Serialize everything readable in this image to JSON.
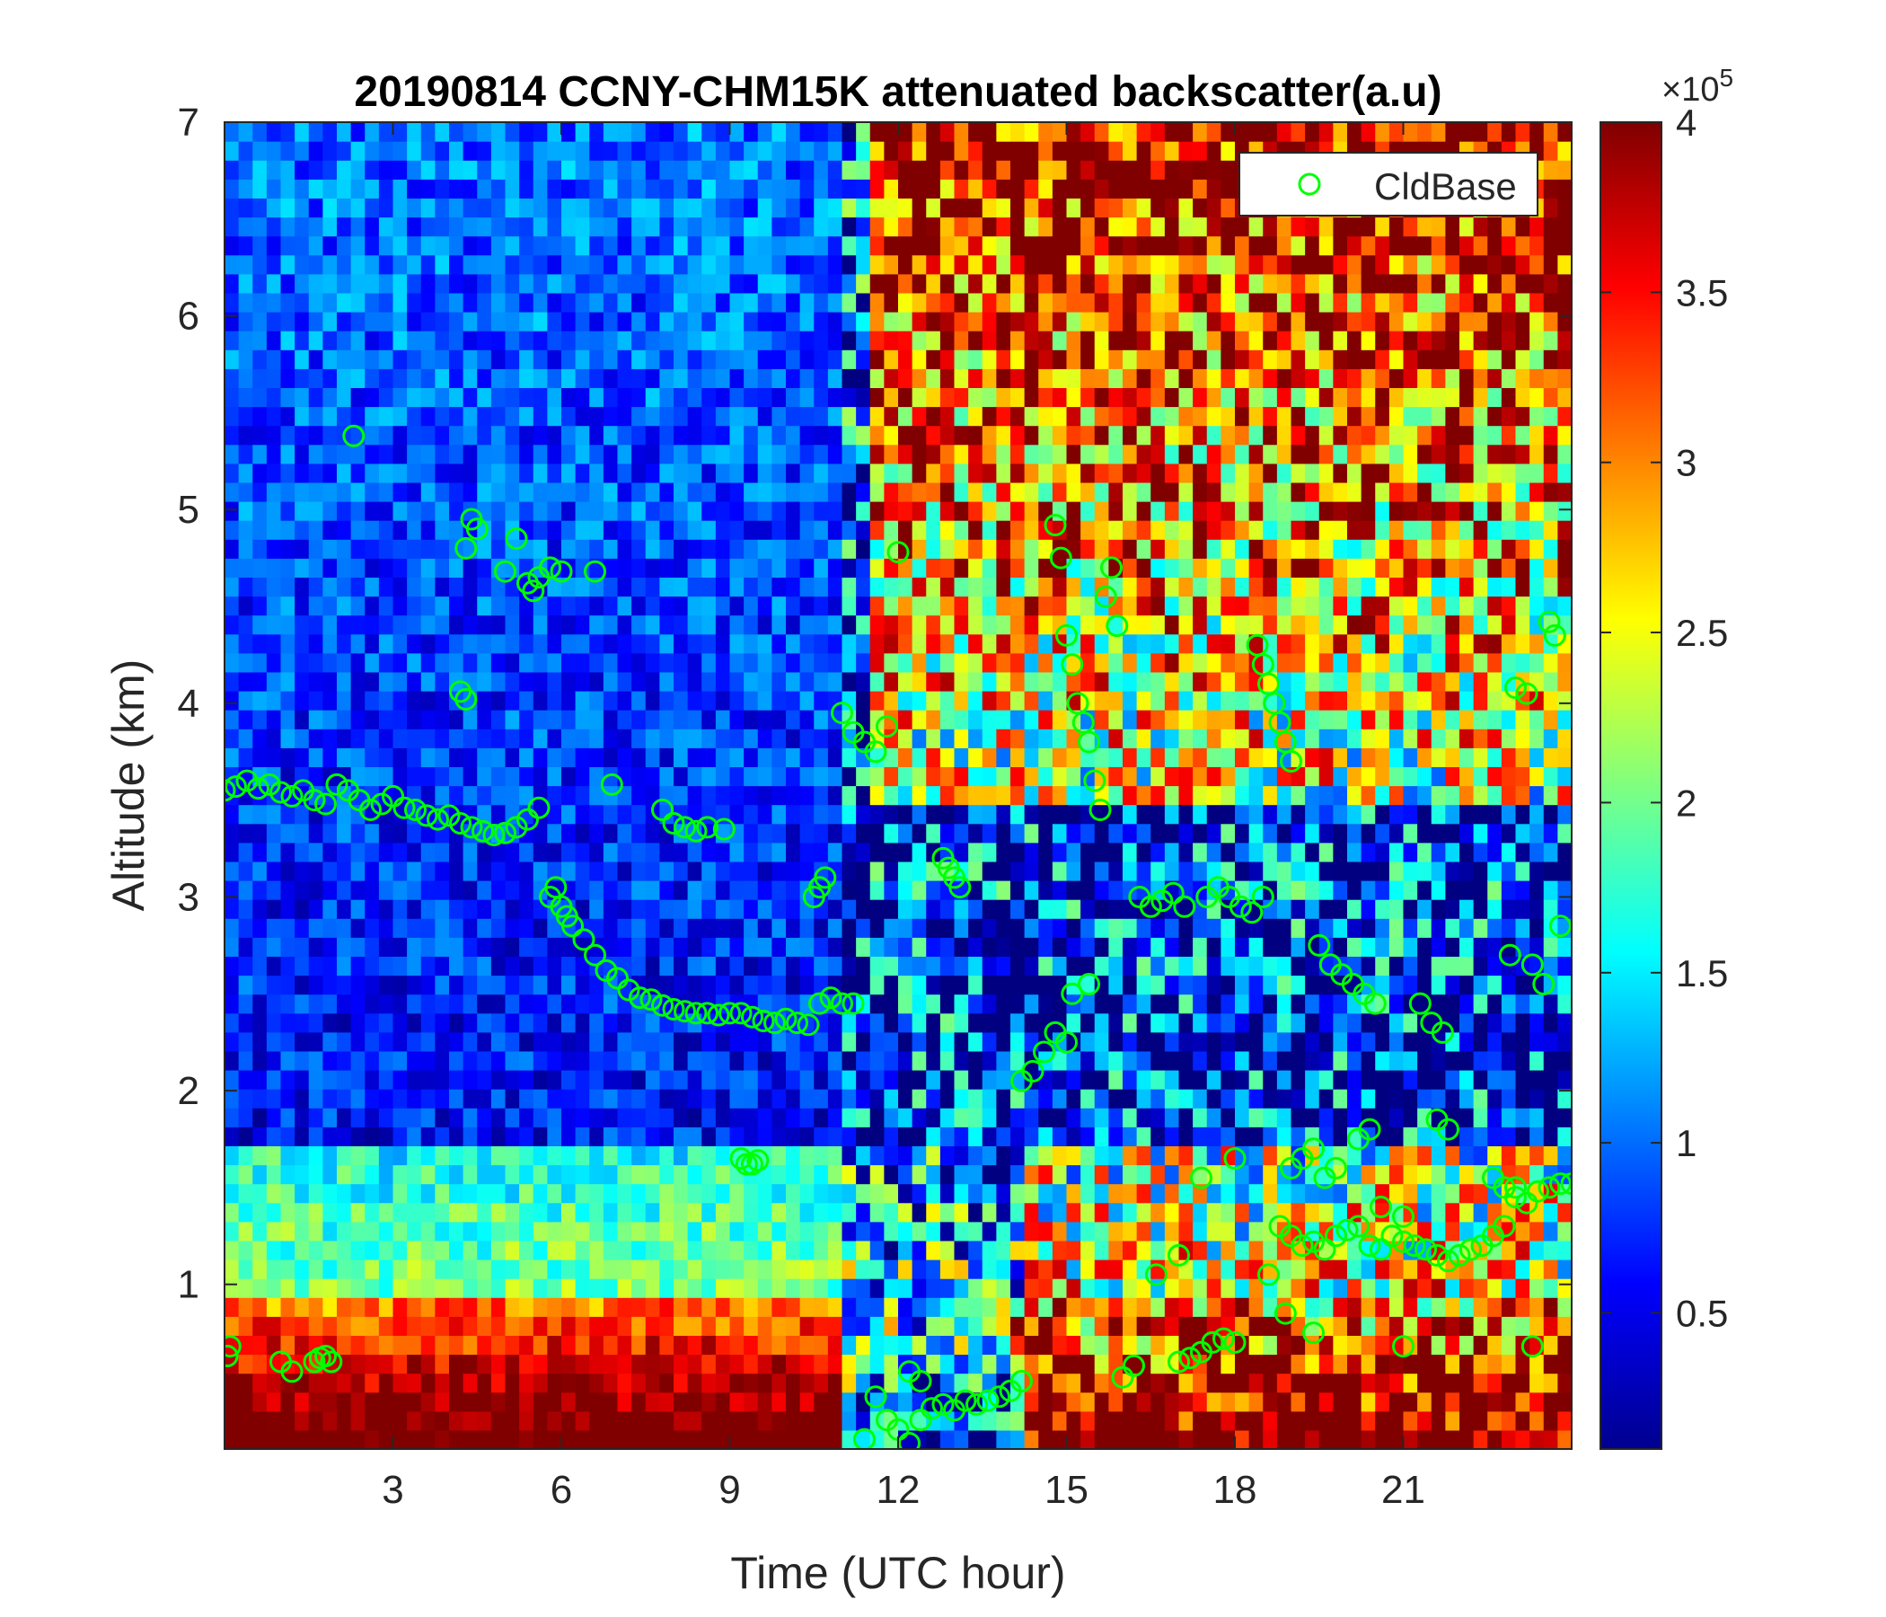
{
  "chart_data": {
    "type": "heatmap",
    "title": "20190814 CCNY-CHM15K attenuated backscatter(a.u)",
    "xlabel": "Time (UTC hour)",
    "ylabel": "Altitude (km)",
    "xlim": [
      0,
      24
    ],
    "ylim": [
      0.15,
      7
    ],
    "xticks": [
      3,
      6,
      9,
      12,
      15,
      18,
      21
    ],
    "yticks": [
      1,
      2,
      3,
      4,
      5,
      6,
      7
    ],
    "colorbar": {
      "colormap": "jet",
      "clim": [
        0.1,
        4
      ],
      "ticks": [
        0.5,
        1,
        1.5,
        2,
        2.5,
        3,
        3.5,
        4
      ],
      "tick_labels": [
        "0.5",
        "1",
        "1.5",
        "2",
        "2.5",
        "3",
        "3.5",
        "4"
      ],
      "exponent_label_prefix": "×10",
      "exponent": "5"
    },
    "legend": {
      "location": "top-right",
      "entries": [
        "CldBase"
      ]
    },
    "series": [
      {
        "name": "CldBase",
        "marker": "circle",
        "color": "#00ff00",
        "x": [
          0.0,
          0.2,
          0.4,
          0.6,
          0.8,
          1.0,
          1.2,
          1.4,
          1.6,
          1.8,
          2.0,
          2.2,
          2.4,
          2.6,
          2.8,
          3.0,
          3.2,
          3.4,
          3.6,
          3.8,
          4.0,
          4.2,
          4.4,
          4.6,
          4.8,
          5.0,
          5.2,
          5.4,
          5.6,
          5.8,
          5.9,
          6.0,
          6.1,
          6.2,
          6.4,
          6.6,
          6.8,
          7.0,
          7.2,
          7.4,
          7.6,
          7.8,
          8.0,
          8.2,
          8.4,
          8.6,
          8.8,
          9.0,
          9.2,
          9.4,
          9.6,
          9.8,
          10.0,
          10.2,
          10.4,
          10.6,
          10.8,
          11.0,
          11.2,
          0.05,
          0.1,
          1.0,
          1.2,
          1.6,
          1.7,
          1.8,
          1.9,
          11.4,
          11.6,
          11.8,
          12.0,
          12.2,
          12.4,
          12.6,
          12.8,
          13.0,
          13.2,
          13.4,
          13.6,
          13.8,
          14.0,
          14.2,
          14.2,
          14.4,
          14.6,
          14.8,
          15.0,
          4.3,
          4.4,
          4.5,
          5.0,
          5.2,
          5.4,
          5.5,
          5.6,
          5.8,
          6.0,
          6.6,
          4.2,
          4.3,
          2.3,
          6.9,
          7.8,
          8.0,
          8.2,
          8.4,
          8.6,
          8.9,
          10.5,
          10.6,
          10.7,
          11.0,
          11.2,
          11.4,
          11.6,
          11.8,
          12.0,
          12.8,
          12.9,
          13.0,
          13.1,
          9.2,
          9.3,
          9.4,
          9.5,
          14.8,
          14.9,
          15.0,
          15.1,
          15.2,
          15.3,
          15.4,
          15.5,
          15.6,
          15.7,
          15.8,
          15.9,
          16.3,
          16.5,
          16.7,
          16.9,
          17.1,
          17.5,
          17.7,
          17.9,
          18.1,
          18.3,
          18.5,
          18.4,
          18.5,
          18.6,
          18.7,
          18.8,
          18.9,
          19.0,
          19.5,
          19.7,
          19.9,
          20.1,
          20.3,
          20.5,
          21.3,
          21.5,
          21.7,
          23.0,
          23.2,
          23.6,
          23.7,
          23.8,
          22.9,
          23.3,
          23.5,
          17.0,
          17.2,
          17.4,
          17.6,
          17.8,
          18.0,
          18.8,
          19.0,
          19.2,
          19.4,
          19.6,
          19.8,
          20.0,
          20.2,
          20.4,
          20.6,
          20.8,
          21.0,
          21.2,
          21.4,
          21.6,
          21.8,
          22.0,
          22.2,
          22.4,
          22.6,
          22.8,
          23.0,
          19.0,
          19.2,
          19.4,
          19.6,
          19.8,
          20.2,
          20.4,
          20.6,
          21.0,
          21.6,
          21.8,
          22.6,
          22.8,
          23.0,
          23.2,
          23.4,
          23.6,
          23.8,
          24.0,
          15.1,
          15.4,
          16.0,
          16.6,
          17.0,
          17.4,
          18.0,
          18.6,
          18.9,
          19.4,
          21.0,
          23.3,
          12.2,
          12.4,
          16.2
        ],
        "y": [
          3.55,
          3.57,
          3.6,
          3.56,
          3.58,
          3.54,
          3.52,
          3.55,
          3.5,
          3.48,
          3.58,
          3.55,
          3.5,
          3.45,
          3.48,
          3.52,
          3.46,
          3.45,
          3.42,
          3.4,
          3.42,
          3.38,
          3.36,
          3.34,
          3.32,
          3.33,
          3.36,
          3.4,
          3.46,
          3.0,
          3.05,
          2.95,
          2.9,
          2.85,
          2.78,
          2.7,
          2.62,
          2.58,
          2.52,
          2.48,
          2.47,
          2.44,
          2.42,
          2.41,
          2.4,
          2.4,
          2.39,
          2.4,
          2.4,
          2.38,
          2.36,
          2.35,
          2.37,
          2.35,
          2.34,
          2.45,
          2.48,
          2.45,
          2.45,
          0.63,
          0.68,
          0.6,
          0.55,
          0.6,
          0.62,
          0.63,
          0.6,
          0.2,
          0.42,
          0.3,
          0.25,
          0.18,
          0.3,
          0.36,
          0.38,
          0.35,
          0.4,
          0.38,
          0.4,
          0.42,
          0.45,
          0.5,
          2.05,
          2.1,
          2.2,
          2.3,
          2.25,
          4.8,
          4.95,
          4.9,
          4.68,
          4.85,
          4.62,
          4.58,
          4.65,
          4.7,
          4.68,
          4.68,
          4.06,
          4.02,
          5.38,
          3.58,
          3.45,
          3.38,
          3.36,
          3.34,
          3.36,
          3.35,
          3.0,
          3.05,
          3.1,
          3.95,
          3.85,
          3.8,
          3.75,
          3.88,
          4.78,
          3.2,
          3.15,
          3.1,
          3.05,
          1.65,
          1.62,
          1.62,
          1.64,
          4.92,
          4.75,
          4.35,
          4.2,
          4.0,
          3.9,
          3.8,
          3.6,
          3.45,
          4.55,
          4.7,
          4.4,
          3.0,
          2.95,
          2.98,
          3.02,
          2.95,
          3.0,
          3.05,
          3.0,
          2.95,
          2.92,
          3.0,
          4.3,
          4.2,
          4.1,
          4.0,
          3.9,
          3.8,
          3.7,
          2.75,
          2.65,
          2.6,
          2.55,
          2.5,
          2.45,
          2.45,
          2.35,
          2.3,
          4.08,
          4.05,
          4.42,
          4.35,
          2.85,
          2.7,
          2.65,
          2.55,
          0.6,
          0.62,
          0.65,
          0.7,
          0.72,
          0.7,
          1.3,
          1.25,
          1.2,
          1.22,
          1.18,
          1.25,
          1.28,
          1.3,
          1.2,
          1.18,
          1.25,
          1.22,
          1.2,
          1.18,
          1.15,
          1.12,
          1.15,
          1.18,
          1.2,
          1.25,
          1.3,
          1.5,
          1.6,
          1.65,
          1.7,
          1.55,
          1.6,
          1.75,
          1.8,
          1.4,
          1.35,
          1.85,
          1.8,
          1.55,
          1.5,
          1.45,
          1.42,
          1.48,
          1.5,
          1.52,
          1.52,
          2.5,
          2.55,
          0.52,
          1.05,
          1.15,
          1.55,
          1.65,
          1.05,
          0.85,
          0.75,
          0.68,
          0.68,
          0.55,
          0.5,
          0.58
        ]
      }
    ]
  }
}
